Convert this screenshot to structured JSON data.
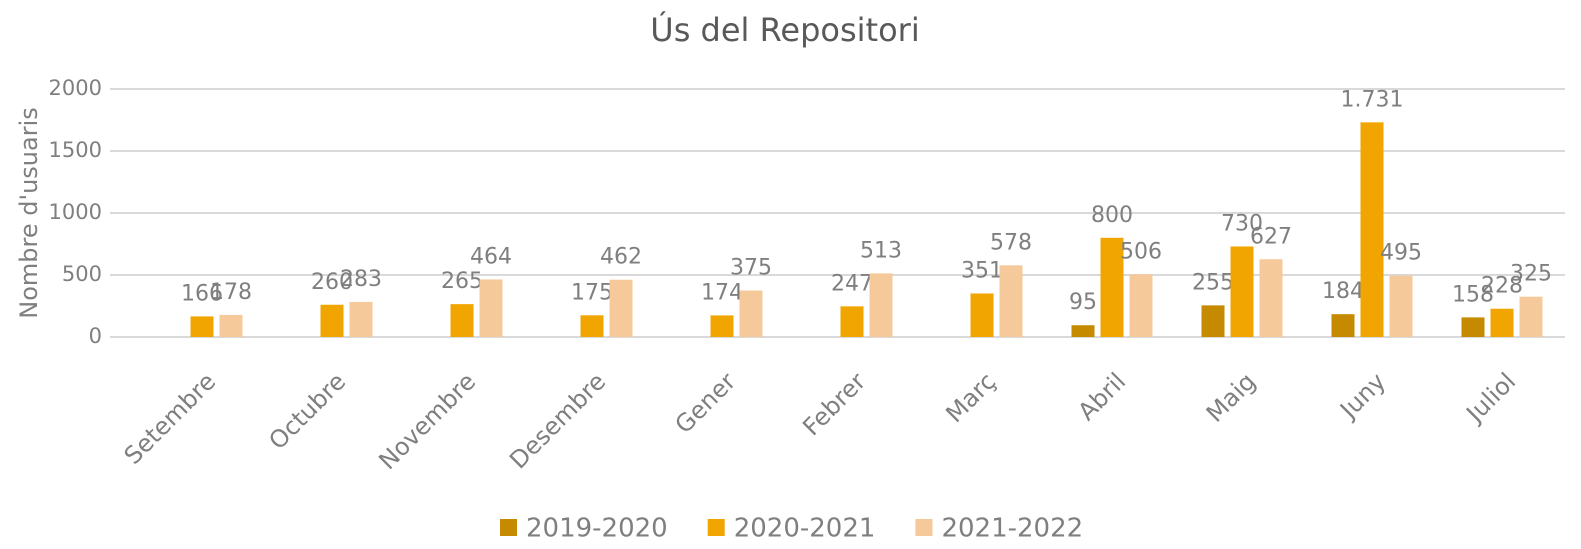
{
  "chart_data": {
    "type": "bar",
    "title": "Ús del Repositori",
    "y_label": "Nombre d'usuaris",
    "categories": [
      "Setembre",
      "Octubre",
      "Novembre",
      "Desembre",
      "Gener",
      "Febrer",
      "Març",
      "Abril",
      "Maig",
      "Juny",
      "Juliol"
    ],
    "series": [
      {
        "name": "2019-2020",
        "color": "#c58a00",
        "values": [
          null,
          null,
          null,
          null,
          null,
          null,
          null,
          95,
          255,
          184,
          158
        ]
      },
      {
        "name": "2020-2021",
        "color": "#f0a500",
        "values": [
          166,
          260,
          265,
          175,
          174,
          247,
          351,
          800,
          730,
          1731,
          228
        ],
        "value_labels": [
          "166",
          "260",
          "265",
          "175",
          "174",
          "247",
          "351",
          "800",
          "730",
          "1.731",
          "228"
        ]
      },
      {
        "name": "2021-2022",
        "color": "#f5c99a",
        "values": [
          178,
          283,
          464,
          462,
          375,
          513,
          578,
          506,
          627,
          495,
          325
        ]
      }
    ],
    "ylim": [
      0,
      2000
    ],
    "yticks": [
      0,
      500,
      1000,
      1500,
      2000
    ],
    "grid": true,
    "legend": "bottom"
  }
}
